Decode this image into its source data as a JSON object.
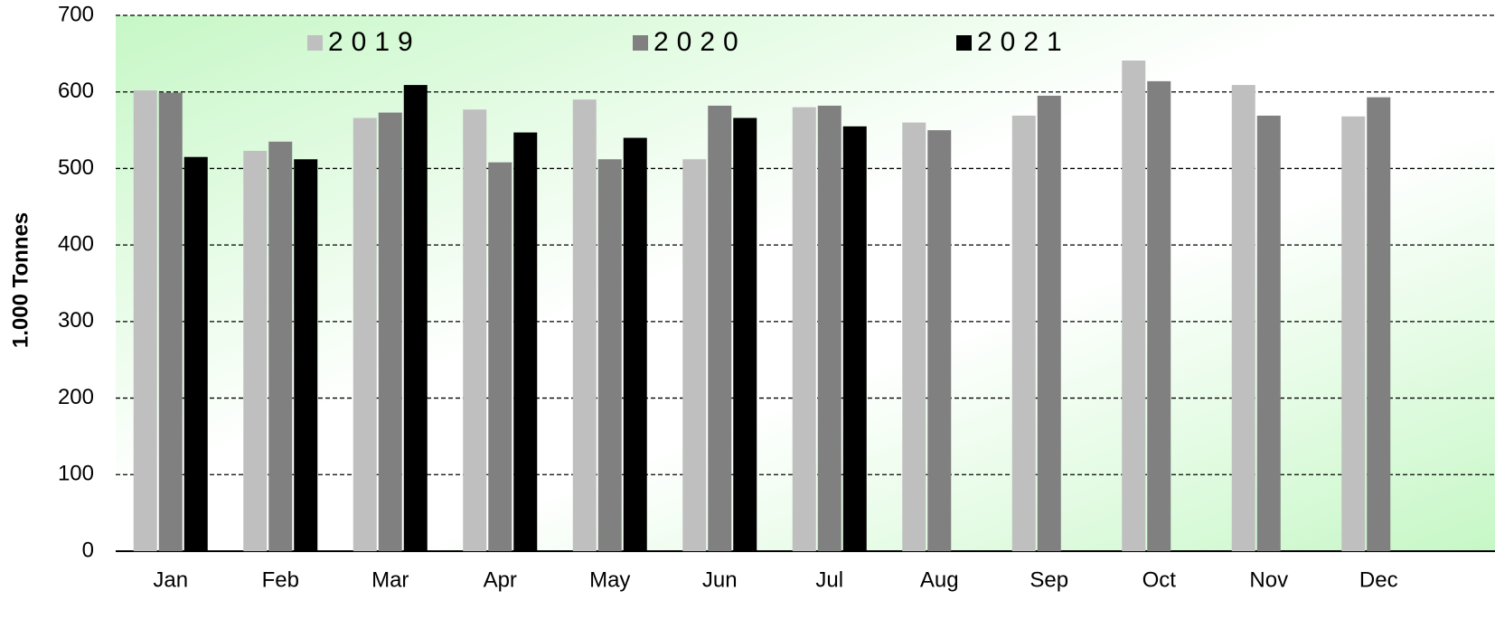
{
  "chart_data": {
    "type": "bar",
    "y_label": "1.000 Tonnes",
    "categories": [
      "Jan",
      "Feb",
      "Mar",
      "Apr",
      "May",
      "Jun",
      "Jul",
      "Aug",
      "Sep",
      "Oct",
      "Nov",
      "Dec"
    ],
    "series": [
      {
        "name": "2019",
        "color": "#bfbfbf",
        "values": [
          602,
          523,
          566,
          577,
          590,
          512,
          580,
          560,
          569,
          641,
          609,
          568
        ]
      },
      {
        "name": "2020",
        "color": "#808080",
        "values": [
          599,
          535,
          573,
          508,
          512,
          582,
          582,
          550,
          595,
          614,
          569,
          593
        ]
      },
      {
        "name": "2021",
        "color": "#000000",
        "values": [
          515,
          512,
          609,
          547,
          540,
          566,
          555,
          null,
          null,
          null,
          null,
          null
        ]
      }
    ],
    "ylim": [
      0,
      700
    ],
    "yticks": [
      0,
      100,
      200,
      300,
      400,
      500,
      600,
      700
    ],
    "grid": true
  }
}
